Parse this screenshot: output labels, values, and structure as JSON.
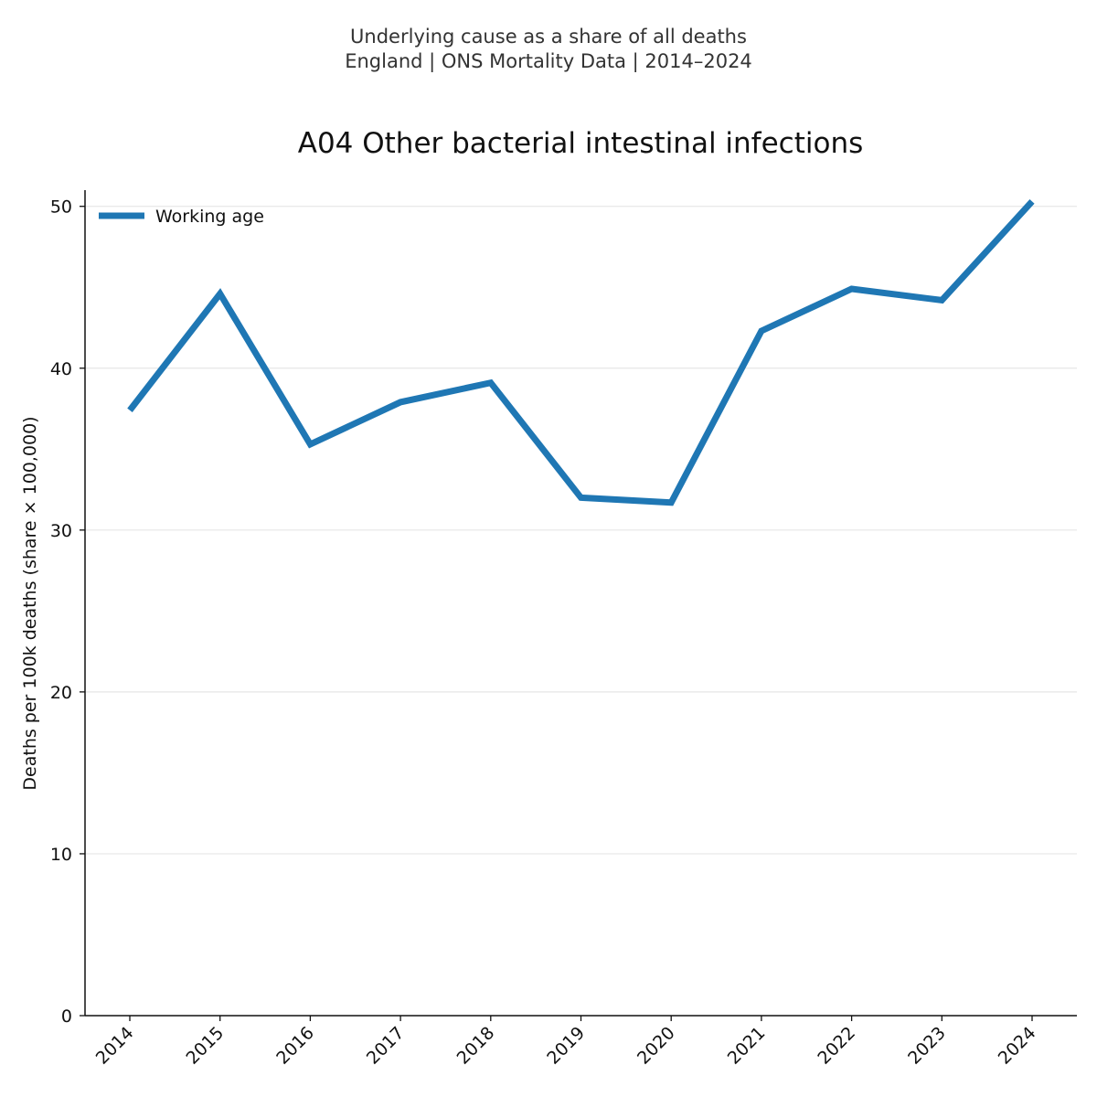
{
  "chart_data": {
    "type": "line",
    "suptitle_line1": "Underlying cause as a share of all deaths",
    "suptitle_line2": "England | ONS Mortality Data | 2014–2024",
    "title": "A04 Other bacterial intestinal infections",
    "xlabel": "",
    "ylabel": "Deaths per 100k deaths (share × 100,000)",
    "categories": [
      "2014",
      "2015",
      "2016",
      "2017",
      "2018",
      "2019",
      "2020",
      "2021",
      "2022",
      "2023",
      "2024"
    ],
    "yticks": [
      0,
      10,
      20,
      30,
      40,
      50
    ],
    "ylim": [
      0,
      51
    ],
    "grid": "horizontal",
    "legend_position": "top-left",
    "series": [
      {
        "name": "Working age",
        "color": "#1f77b4",
        "values": [
          37.4,
          44.6,
          35.3,
          37.9,
          39.1,
          32.0,
          31.7,
          42.3,
          44.9,
          44.2,
          50.3
        ]
      }
    ]
  }
}
